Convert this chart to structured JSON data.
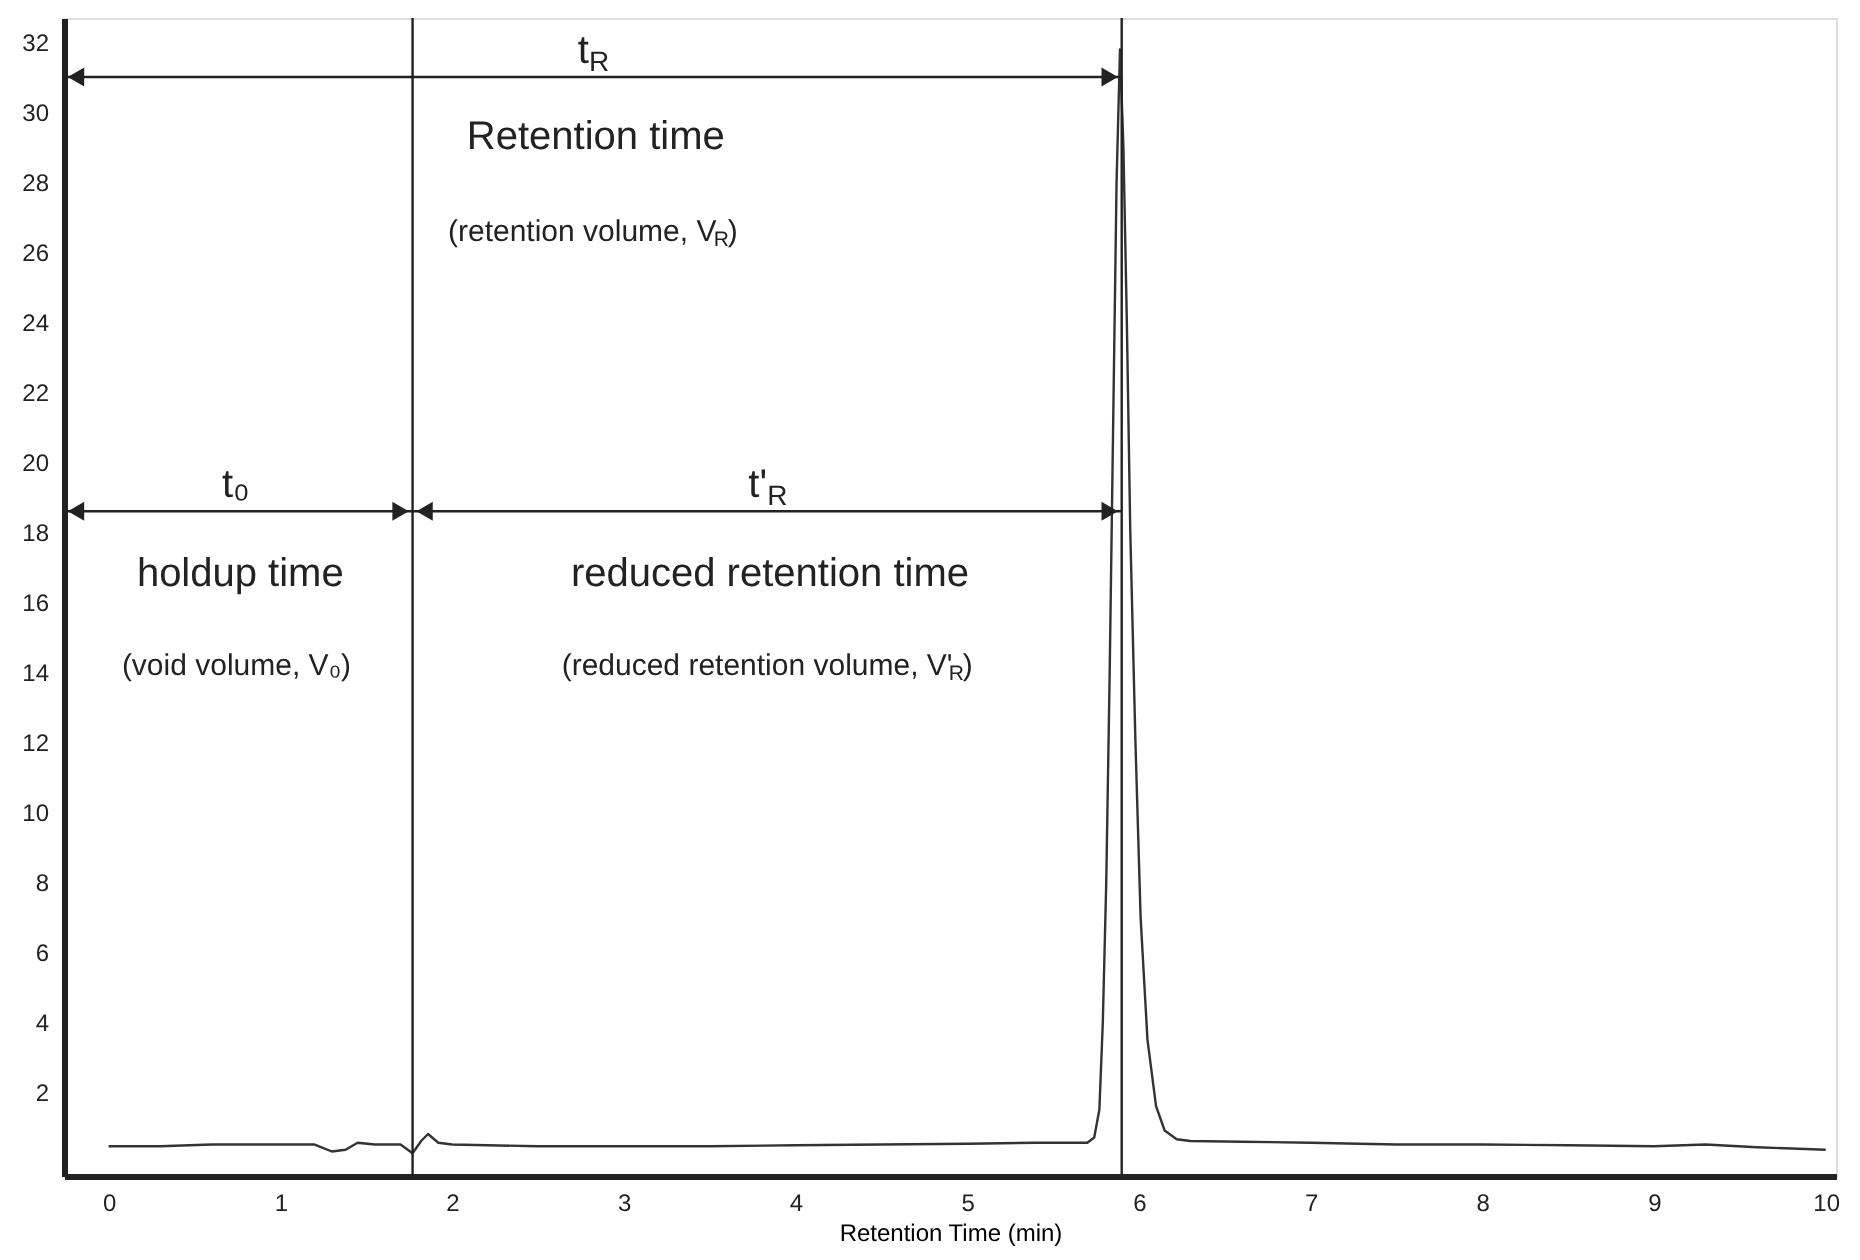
{
  "chart_data": {
    "type": "line",
    "xlabel": "Retention Time (min)",
    "x": [
      0,
      0.3,
      0.6,
      0.9,
      1.2,
      1.3,
      1.38,
      1.45,
      1.55,
      1.7,
      1.77,
      1.82,
      1.86,
      1.92,
      2.0,
      2.5,
      3.0,
      3.5,
      4.0,
      4.5,
      5.0,
      5.4,
      5.7,
      5.74,
      5.77,
      5.79,
      5.81,
      5.83,
      5.85,
      5.87,
      5.89,
      5.91,
      5.93,
      5.95,
      5.98,
      6.01,
      6.05,
      6.1,
      6.15,
      6.22,
      6.3,
      6.6,
      7.0,
      7.5,
      8.0,
      8.5,
      9.0,
      9.3,
      9.6,
      10.0
    ],
    "series": [
      {
        "color": "#333333",
        "values": [
          0.45,
          0.45,
          0.5,
          0.5,
          0.5,
          0.3,
          0.35,
          0.55,
          0.5,
          0.5,
          0.25,
          0.6,
          0.8,
          0.55,
          0.5,
          0.45,
          0.45,
          0.45,
          0.48,
          0.5,
          0.52,
          0.55,
          0.55,
          0.7,
          1.5,
          4,
          8,
          14,
          21,
          28,
          31.8,
          29,
          24,
          18,
          12,
          7,
          3.5,
          1.6,
          0.9,
          0.65,
          0.6,
          0.58,
          0.55,
          0.5,
          0.5,
          0.48,
          0.45,
          0.5,
          0.42,
          0.35
        ]
      }
    ],
    "xlim": [
      -0.26,
      10.06
    ],
    "ylim": [
      -0.4,
      32.7
    ],
    "xticks": [
      0,
      1,
      2,
      3,
      4,
      5,
      6,
      7,
      8,
      9,
      10
    ],
    "yticks": [
      2,
      4,
      6,
      8,
      10,
      12,
      14,
      16,
      18,
      20,
      22,
      24,
      26,
      28,
      30,
      32
    ],
    "grid": false,
    "marker": "none",
    "line_style": "solid",
    "ref_lines": [
      {
        "axis": "x",
        "value": 1.77,
        "label": null
      },
      {
        "axis": "x",
        "value": 5.9,
        "label": null
      }
    ],
    "annotations": [
      "t$_{R}$",
      "Retention time",
      "(retention volume, V$_{R}$)",
      "t₀",
      "holdup time",
      "(void volume, V₀)",
      "t'$_{R}$",
      "reduced retention time",
      "(reduced retention volume, V'$_{R}$)"
    ]
  }
}
